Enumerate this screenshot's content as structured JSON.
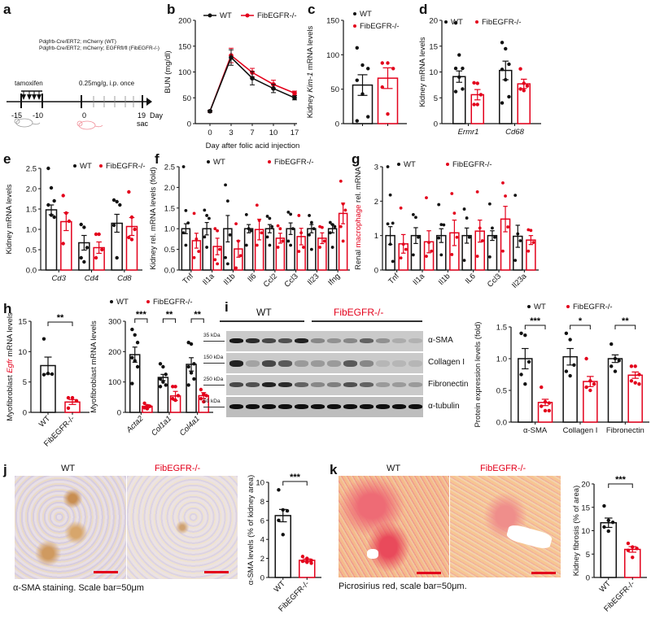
{
  "colors": {
    "wt": "#111111",
    "ko": "#e3001b"
  },
  "legend": {
    "wt": "WT",
    "ko": "FibEGFR-/-"
  },
  "panel_a": {
    "label": "a",
    "genotype_wt": "Pdgfrb-Cre/ERT2; mCherry (WT)",
    "genotype_ko": "Pdgfrb-Cre/ERT2; mCherry; EGFRfl/fl (FibEGFR-/-)",
    "tamoxifen_label": "tamoxifen",
    "dose_label": "0.25mg/g, i.p. once",
    "ticks": [
      "-15",
      "-10",
      "0",
      "19"
    ],
    "sac_label": "sac",
    "axis_label": "Day"
  },
  "chart_data": [
    {
      "id": "b",
      "type": "line",
      "title": "",
      "xlabel": "Day after folic acid injection",
      "ylabel": "BUN (mg/dl)",
      "x": [
        0,
        3,
        7,
        10,
        17
      ],
      "categories": [
        "0",
        "3",
        "7",
        "10",
        "17"
      ],
      "ylim": [
        0,
        200
      ],
      "yticks": [
        0,
        50,
        100,
        150,
        200
      ],
      "series": [
        {
          "name": "WT",
          "values": [
            24,
            128,
            88,
            68,
            50
          ],
          "err": [
            2,
            15,
            13,
            8,
            4
          ]
        },
        {
          "name": "FibEGFR-/-",
          "values": [
            24,
            132,
            99,
            76,
            59
          ],
          "err": [
            2,
            14,
            8,
            8,
            4
          ]
        }
      ],
      "legend_position": "top"
    },
    {
      "id": "c",
      "type": "bar",
      "ylabel": "Kidney Kim-1 mRNA levels",
      "categories": [
        "WT",
        "FibEGFR-/-"
      ],
      "values": [
        56,
        66
      ],
      "err": [
        15,
        15
      ],
      "points": [
        [
          110,
          85,
          80,
          63,
          43,
          10,
          4
        ],
        [
          88,
          88,
          80,
          53,
          14
        ]
      ],
      "ylim": [
        0,
        150
      ],
      "yticks": [
        0,
        50,
        100,
        150
      ]
    },
    {
      "id": "d",
      "type": "bar",
      "ylabel": "Kidney mRNA levels",
      "categories": [
        "Ermr1",
        "Cd68"
      ],
      "series": [
        {
          "name": "WT",
          "values": [
            9.1,
            10.3
          ],
          "err": [
            1.1,
            1.8
          ],
          "points": [
            [
              19.5,
              13.3,
              10.7,
              10.7,
              9,
              6.7,
              6.2
            ],
            [
              15.7,
              14.5,
              11.5,
              10.5,
              8.5,
              5.2,
              4
            ]
          ]
        },
        {
          "name": "FibEGFR-/-",
          "values": [
            5.6,
            7.7
          ],
          "err": [
            1.0,
            0.9
          ],
          "points": [
            [
              7.9,
              7.8,
              5.6,
              3.7,
              3.7
            ],
            [
              10.6,
              7.8,
              7.3,
              6.7,
              6.4
            ]
          ]
        }
      ],
      "ylim": [
        0,
        20
      ],
      "yticks": [
        0,
        5,
        10,
        15,
        20
      ]
    },
    {
      "id": "e",
      "type": "bar",
      "ylabel": "Kidney mRNA levels",
      "categories": [
        "Cd3",
        "Cd4",
        "Cd8"
      ],
      "series": [
        {
          "name": "WT",
          "values": [
            1.48,
            0.67,
            1.15
          ],
          "err": [
            0.12,
            0.18,
            0.22
          ],
          "points": [
            [
              2.52,
              2.02,
              1.7,
              1.6,
              1.35,
              1.3
            ],
            [
              1.12,
              1.05,
              0.55,
              0.3,
              0.2
            ],
            [
              1.72,
              1.68,
              1.6,
              1.1,
              0.3
            ]
          ]
        },
        {
          "name": "FibEGFR-/-",
          "values": [
            1.19,
            0.55,
            1.07
          ],
          "err": [
            0.22,
            0.14,
            0.22
          ],
          "points": [
            [
              1.83,
              1.4,
              1.2,
              0.65
            ],
            [
              0.88,
              0.88,
              0.5,
              0.3
            ],
            [
              1.92,
              1.3,
              1.0,
              0.8,
              0.75
            ]
          ]
        }
      ],
      "ylim": [
        0,
        2.5
      ],
      "yticks": [
        "0.0",
        "0.5",
        "1.0",
        "1.5",
        "2.0",
        "2.5"
      ]
    },
    {
      "id": "f",
      "type": "bar",
      "ylabel": "Kidney rel. mRNA levels (fold)",
      "categories": [
        "Tnf",
        "Il1a",
        "Il1b",
        "Il6",
        "Ccl2",
        "Ccl3",
        "Il23",
        "Ifng"
      ],
      "series": [
        {
          "name": "WT",
          "values": [
            1.0,
            1.0,
            1.0,
            1.0,
            1.0,
            1.0,
            1.0,
            1.0
          ],
          "err": [
            0.12,
            0.15,
            0.32,
            0.1,
            0.1,
            0.14,
            0.1,
            0.1
          ],
          "points": [
            [
              2.58,
              1.44,
              1.14,
              0.9,
              0.6
            ],
            [
              1.45,
              1.32,
              1.25,
              0.8,
              0.55
            ],
            [
              2.06,
              1.67,
              0.85,
              0.3,
              0.15
            ],
            [
              1.34,
              1.0,
              0.95,
              0.6
            ],
            [
              1.3,
              1.25,
              1.05,
              0.8,
              0.6
            ],
            [
              1.4,
              1.35,
              1.0,
              0.7,
              0.6
            ],
            [
              1.32,
              1.15,
              1.0,
              0.85,
              0.5
            ],
            [
              1.15,
              1.1,
              1.05,
              0.9,
              0.55
            ]
          ]
        },
        {
          "name": "FibEGFR-/-",
          "values": [
            0.71,
            0.57,
            0.51,
            0.98,
            0.77,
            0.81,
            0.77,
            1.37
          ],
          "err": [
            0.18,
            0.2,
            0.2,
            0.25,
            0.12,
            0.2,
            0.13,
            0.25
          ],
          "points": [
            [
              1.37,
              0.75,
              0.45,
              0.3
            ],
            [
              1.0,
              0.95,
              0.5,
              0.25,
              0.15
            ],
            [
              1.12,
              0.7,
              0.35,
              0.05
            ],
            [
              1.57,
              1.2,
              0.9,
              0.6
            ],
            [
              1.07,
              1.0,
              0.7,
              0.55
            ],
            [
              1.32,
              0.9,
              0.55,
              0.45
            ],
            [
              1.05,
              1.03,
              0.7,
              0.55
            ],
            [
              2.15,
              1.6,
              1.45,
              1.05,
              0.7
            ]
          ]
        }
      ],
      "ylim": [
        0,
        2.5
      ],
      "yticks": [
        "0.0",
        "0.5",
        "1.0",
        "1.5",
        "2.0",
        "2.5"
      ]
    },
    {
      "id": "g",
      "type": "bar",
      "ylabel": "Renal macrophage rel. mRNA",
      "categories": [
        "Tnf",
        "Il1a",
        "Il1b",
        "IL6",
        "Ccl3",
        "Il23a"
      ],
      "series": [
        {
          "name": "WT",
          "values": [
            1.0,
            1.0,
            1.0,
            1.0,
            1.0,
            0.98
          ],
          "err": [
            0.26,
            0.23,
            0.2,
            0.22,
            0.14,
            0.32
          ],
          "points": [
            [
              3.03,
              2.18,
              1.36,
              1.34,
              0.75,
              0.25
            ],
            [
              1.61,
              1.53,
              0.95,
              0.44
            ],
            [
              1.9,
              1.32,
              1.31,
              0.93,
              0.44
            ],
            [
              1.77,
              1.51,
              0.95,
              0.28
            ],
            [
              1.92,
              1.22,
              0.95,
              0.38
            ],
            [
              2.17,
              1.05,
              0.85,
              0.28
            ]
          ]
        },
        {
          "name": "FibEGFR-/-",
          "values": [
            0.76,
            0.82,
            1.08,
            1.13,
            1.48,
            0.87
          ],
          "err": [
            0.27,
            0.32,
            0.37,
            0.32,
            0.37,
            0.13
          ],
          "points": [
            [
              1.8,
              0.75,
              0.6,
              0.35
            ],
            [
              2.1,
              0.8,
              0.55,
              0.4
            ],
            [
              2.22,
              1.65,
              0.95,
              0.45
            ],
            [
              2.27,
              1.22,
              0.85,
              0.4
            ],
            [
              2.53,
              2.15,
              1.25,
              0.55
            ],
            [
              1.17,
              1.15,
              0.8,
              0.55
            ]
          ]
        }
      ],
      "ylim": [
        0,
        3
      ],
      "yticks": [
        "0",
        "1",
        "2",
        "3"
      ]
    },
    {
      "id": "h1",
      "type": "bar",
      "ylabel": "Myofibroblast Egfr mRNA levels",
      "categories": [
        "WT",
        "FibEGFR-/-"
      ],
      "values": [
        7.7,
        1.7
      ],
      "err": [
        1.4,
        0.4
      ],
      "points": [
        [
          12.1,
          6.4,
          6.3,
          6.2
        ],
        [
          2.4,
          2.4,
          1.9,
          0.7
        ]
      ],
      "ylim": [
        0,
        15
      ],
      "yticks": [
        0,
        5,
        10,
        15
      ],
      "significance": "**"
    },
    {
      "id": "h2",
      "type": "bar",
      "ylabel": "Myofibroblast mRNA levels",
      "categories": [
        "Acta2",
        "Col1a1",
        "Col4a1"
      ],
      "series": [
        {
          "name": "WT",
          "values": [
            190,
            115,
            158
          ],
          "err": [
            25,
            10,
            22
          ],
          "points": [
            [
              273,
              255,
              230,
              180,
              170,
              150,
              95
            ],
            [
              160,
              150,
              125,
              110,
              100,
              90,
              85
            ],
            [
              230,
              225,
              160,
              150,
              130,
              110,
              90
            ]
          ]
        },
        {
          "name": "FibEGFR-/-",
          "values": [
            20,
            54,
            55
          ],
          "err": [
            5,
            15,
            10
          ],
          "points": [
            [
              30,
              22,
              20,
              15,
              12
            ],
            [
              85,
              85,
              55,
              45,
              40
            ],
            [
              75,
              60,
              55,
              45,
              35
            ]
          ]
        }
      ],
      "ylim": [
        0,
        300
      ],
      "yticks": [
        0,
        100,
        200,
        300
      ],
      "significance": [
        "***",
        "**",
        "**"
      ]
    },
    {
      "id": "i",
      "type": "bar",
      "ylabel": "Protein expression levels (fold)",
      "categories": [
        "α-SMA",
        "Collagen I",
        "Fibronectin"
      ],
      "series": [
        {
          "name": "WT",
          "values": [
            1.0,
            1.03,
            1.0
          ],
          "err": [
            0.16,
            0.13,
            0.06
          ],
          "points": [
            [
              1.4,
              1.37,
              0.95,
              0.75,
              0.6
            ],
            [
              1.4,
              1.3,
              0.9,
              0.8,
              0.73
            ],
            [
              1.23,
              1.0,
              0.97,
              0.88,
              0.8
            ]
          ]
        },
        {
          "name": "FibEGFR-/-",
          "values": [
            0.31,
            0.64,
            0.74
          ],
          "err": [
            0.05,
            0.08,
            0.05
          ],
          "points": [
            [
              0.55,
              0.32,
              0.3,
              0.25,
              0.18,
              0.18
            ],
            [
              1.0,
              0.65,
              0.6,
              0.55,
              0.5
            ],
            [
              0.88,
              0.88,
              0.75,
              0.65,
              0.62,
              0.6
            ]
          ]
        }
      ],
      "ylim": [
        0,
        1.5
      ],
      "yticks": [
        "0.0",
        "0.5",
        "1.0",
        "1.5"
      ],
      "significance": [
        "***",
        "*",
        "**"
      ]
    },
    {
      "id": "j",
      "type": "bar",
      "ylabel": "α-SMA levels (% of kidney area)",
      "categories": [
        "WT",
        "FibEGFR-/-"
      ],
      "values": [
        6.5,
        1.8
      ],
      "err": [
        0.65,
        0.15
      ],
      "points": [
        [
          9.2,
          7.1,
          7.0,
          6.0,
          4.5
        ],
        [
          2.2,
          2.0,
          1.8,
          1.7,
          1.6,
          1.5
        ]
      ],
      "ylim": [
        0,
        10
      ],
      "yticks": [
        0,
        2,
        4,
        6,
        8,
        10
      ],
      "significance": "***"
    },
    {
      "id": "k",
      "type": "bar",
      "ylabel": "Kidney fibrosis (% of area)",
      "categories": [
        "WT",
        "FibEGFR-/-"
      ],
      "values": [
        11.7,
        6.0
      ],
      "err": [
        1.0,
        0.6
      ],
      "points": [
        [
          15.3,
          12.2,
          11.8,
          10.8,
          9.9
        ],
        [
          7.3,
          6.5,
          6.2,
          5.8,
          4.3
        ]
      ],
      "ylim": [
        0,
        20
      ],
      "yticks": [
        0,
        5,
        10,
        15,
        20
      ],
      "significance": "***"
    }
  ],
  "panel_i_blot": {
    "label": "i",
    "group_wt": "WT",
    "group_ko": "FibEGFR-/-",
    "rows": [
      {
        "marker": "35 kDa",
        "protein": "α-SMA"
      },
      {
        "marker": "150 kDa",
        "protein": "Collagen I"
      },
      {
        "marker": "250 kDa",
        "protein": "Fibronectin"
      },
      {
        "marker": "50 kDa",
        "protein": "α-tubulin"
      }
    ]
  },
  "panel_j": {
    "label": "j",
    "img_wt": "WT",
    "img_ko": "FibEGFR-/-",
    "caption": "α-SMA staining. Scale bar=50μm"
  },
  "panel_k": {
    "label": "k",
    "img_wt": "WT",
    "img_ko": "FibEGFR-/-",
    "caption": "Picrosirius red, scale bar=50μm."
  }
}
